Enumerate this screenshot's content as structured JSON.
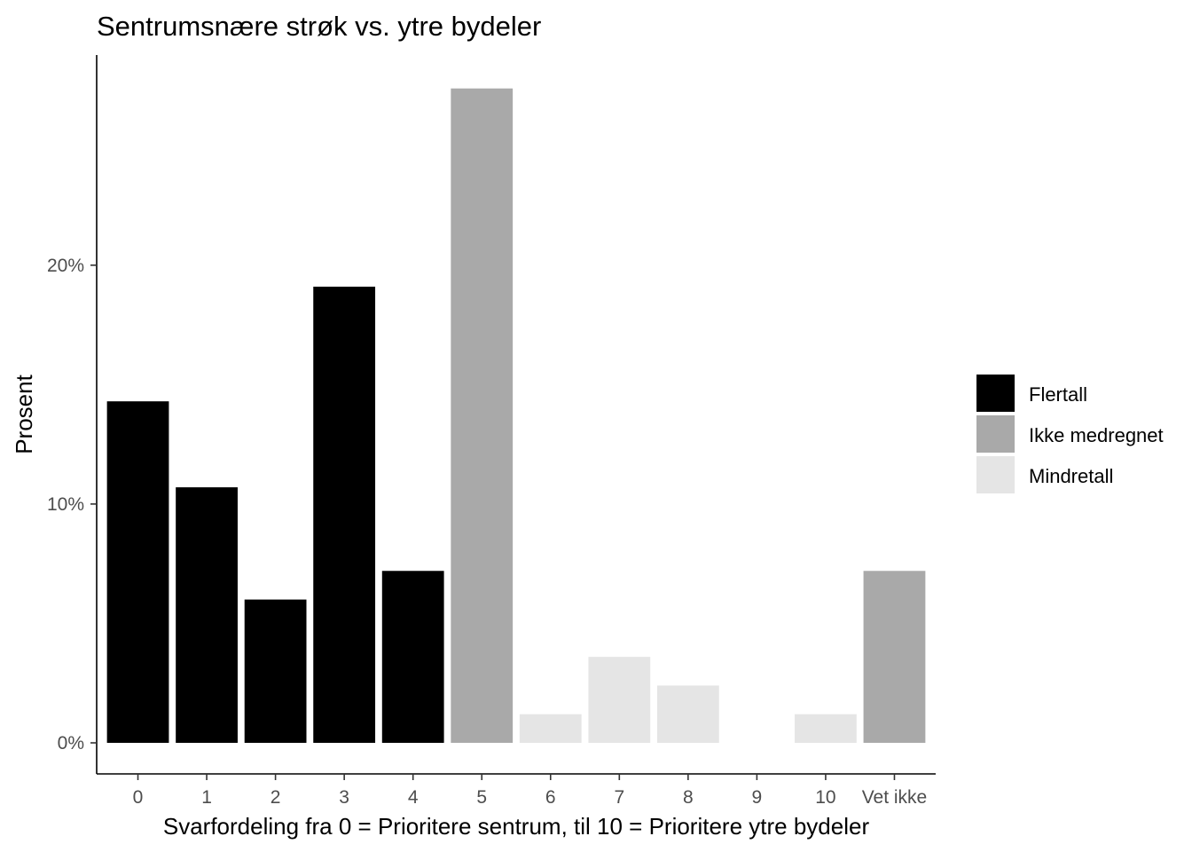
{
  "chart_data": {
    "type": "bar",
    "title": "Sentrumsnære strøk vs. ytre bydeler",
    "xlabel": "Svarfordeling fra 0 = Prioritere sentrum, til 10 = Prioritere ytre bydeler",
    "ylabel": "Prosent",
    "categories": [
      "0",
      "1",
      "2",
      "3",
      "4",
      "5",
      "6",
      "7",
      "8",
      "9",
      "10",
      "Vet ikke"
    ],
    "values": [
      14.3,
      10.7,
      6.0,
      19.1,
      7.2,
      27.4,
      1.2,
      3.6,
      2.4,
      0.0,
      1.2,
      7.2
    ],
    "groups": [
      "Flertall",
      "Flertall",
      "Flertall",
      "Flertall",
      "Flertall",
      "Ikke medregnet",
      "Mindretall",
      "Mindretall",
      "Mindretall",
      "Mindretall",
      "Mindretall",
      "Ikke medregnet"
    ],
    "ylim": [
      -1.3,
      28.8
    ],
    "yticks": [
      0,
      10,
      20
    ],
    "ytick_labels": [
      "0%",
      "10%",
      "20%"
    ],
    "grid": false,
    "legend": {
      "placement": "right",
      "entries": [
        {
          "name": "Flertall",
          "color": "#000000"
        },
        {
          "name": "Ikke medregnet",
          "color": "#a9a9a9"
        },
        {
          "name": "Mindretall",
          "color": "#e5e5e5"
        }
      ]
    }
  }
}
